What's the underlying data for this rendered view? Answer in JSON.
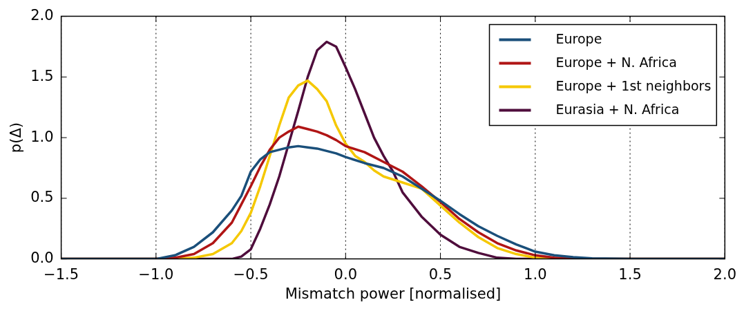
{
  "chart_data": {
    "type": "line",
    "xlabel": "Mismatch power [normalised]",
    "ylabel": "p(Δ)",
    "xlim": [
      -1.5,
      2.0
    ],
    "ylim": [
      0,
      2.0
    ],
    "xticks": [
      {
        "value": -1.5,
        "label": "−1.5"
      },
      {
        "value": -1.0,
        "label": "−1.0"
      },
      {
        "value": -0.5,
        "label": "−0.5"
      },
      {
        "value": 0,
        "label": "0.0"
      },
      {
        "value": 0.5,
        "label": "0.5"
      },
      {
        "value": 1.0,
        "label": "1.0"
      },
      {
        "value": 1.5,
        "label": "1.5"
      },
      {
        "value": 2.0,
        "label": "2.0"
      }
    ],
    "yticks": [
      {
        "value": 0,
        "label": "0.0"
      },
      {
        "value": 0.5,
        "label": "0.5"
      },
      {
        "value": 1.0,
        "label": "1.0"
      },
      {
        "value": 1.5,
        "label": "1.5"
      },
      {
        "value": 2.0,
        "label": "2.0"
      }
    ],
    "grid": "x",
    "legend": "top right",
    "marker": "none",
    "line_style": "solid",
    "series": [
      {
        "name": "Europe",
        "color": "#1a4f7a",
        "x": [
          -1.5,
          -1.0,
          -0.9,
          -0.8,
          -0.7,
          -0.6,
          -0.55,
          -0.5,
          -0.45,
          -0.4,
          -0.35,
          -0.3,
          -0.25,
          -0.2,
          -0.15,
          -0.1,
          -0.05,
          0,
          0.1,
          0.2,
          0.3,
          0.4,
          0.5,
          0.6,
          0.7,
          0.8,
          0.9,
          1.0,
          1.1,
          1.2,
          1.3,
          1.5,
          2.0
        ],
        "values": [
          0,
          0,
          0.03,
          0.1,
          0.22,
          0.4,
          0.52,
          0.72,
          0.82,
          0.88,
          0.9,
          0.92,
          0.93,
          0.92,
          0.91,
          0.89,
          0.87,
          0.84,
          0.79,
          0.75,
          0.68,
          0.58,
          0.48,
          0.37,
          0.27,
          0.19,
          0.12,
          0.06,
          0.03,
          0.015,
          0.005,
          0,
          0
        ]
      },
      {
        "name": "Europe + N. Africa",
        "color": "#b01515",
        "x": [
          -1.5,
          -1.0,
          -0.9,
          -0.8,
          -0.7,
          -0.6,
          -0.55,
          -0.5,
          -0.45,
          -0.4,
          -0.35,
          -0.3,
          -0.25,
          -0.2,
          -0.15,
          -0.1,
          -0.05,
          0,
          0.1,
          0.2,
          0.3,
          0.4,
          0.5,
          0.6,
          0.7,
          0.8,
          0.9,
          1.0,
          1.1,
          1.2,
          2.0
        ],
        "values": [
          0,
          0,
          0.01,
          0.04,
          0.13,
          0.3,
          0.45,
          0.6,
          0.76,
          0.9,
          1.0,
          1.05,
          1.09,
          1.07,
          1.05,
          1.02,
          0.98,
          0.93,
          0.88,
          0.8,
          0.72,
          0.6,
          0.47,
          0.33,
          0.22,
          0.13,
          0.07,
          0.03,
          0.01,
          0,
          0
        ]
      },
      {
        "name": "Europe + 1st neighbors",
        "color": "#f5c800",
        "x": [
          -1.5,
          -0.9,
          -0.8,
          -0.7,
          -0.6,
          -0.55,
          -0.5,
          -0.45,
          -0.4,
          -0.35,
          -0.3,
          -0.25,
          -0.2,
          -0.15,
          -0.1,
          -0.05,
          0,
          0.05,
          0.1,
          0.15,
          0.2,
          0.3,
          0.4,
          0.5,
          0.6,
          0.7,
          0.8,
          0.9,
          1.0,
          1.1,
          2.0
        ],
        "values": [
          0,
          0,
          0.01,
          0.04,
          0.13,
          0.23,
          0.38,
          0.6,
          0.85,
          1.1,
          1.33,
          1.43,
          1.47,
          1.4,
          1.3,
          1.1,
          0.95,
          0.85,
          0.8,
          0.73,
          0.68,
          0.63,
          0.58,
          0.44,
          0.3,
          0.18,
          0.09,
          0.04,
          0.01,
          0,
          0
        ]
      },
      {
        "name": "Eurasia + N. Africa",
        "color": "#4f0d3c",
        "x": [
          -1.5,
          -0.6,
          -0.55,
          -0.5,
          -0.45,
          -0.4,
          -0.35,
          -0.3,
          -0.25,
          -0.2,
          -0.15,
          -0.1,
          -0.05,
          0,
          0.05,
          0.1,
          0.15,
          0.2,
          0.25,
          0.3,
          0.35,
          0.4,
          0.5,
          0.6,
          0.7,
          0.8,
          0.9,
          2.0
        ],
        "values": [
          0,
          0,
          0.02,
          0.08,
          0.25,
          0.45,
          0.68,
          0.95,
          1.22,
          1.5,
          1.72,
          1.79,
          1.75,
          1.58,
          1.4,
          1.2,
          1.0,
          0.85,
          0.72,
          0.55,
          0.45,
          0.35,
          0.2,
          0.1,
          0.05,
          0.01,
          0,
          0
        ]
      }
    ]
  }
}
